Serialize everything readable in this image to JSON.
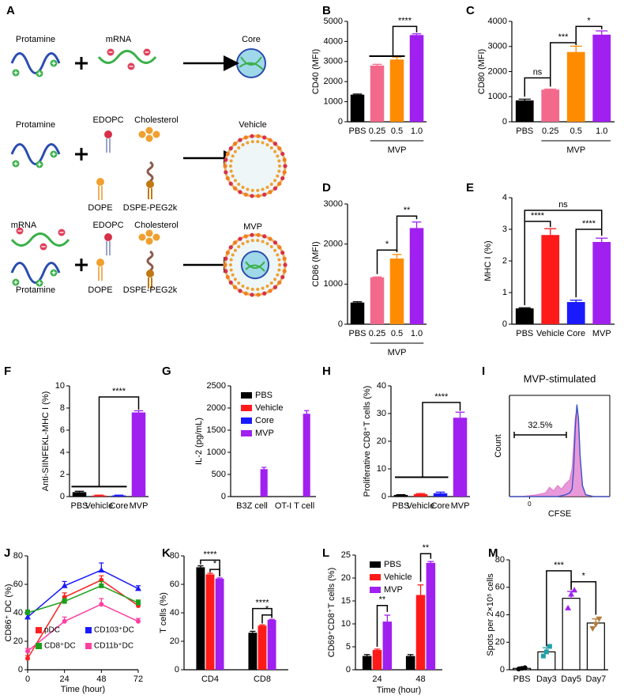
{
  "schematic": {
    "panel": "A",
    "rows": [
      {
        "labels": [
          "Protamine",
          "mRNA"
        ],
        "product": "Core"
      },
      {
        "labels": [
          "Protamine",
          "EDOPC",
          "Cholesterol",
          "DOPE",
          "DSPE-PEG2k"
        ],
        "product": "Vehicle"
      },
      {
        "labels": [
          "mRNA",
          "EDOPC",
          "Cholesterol",
          "Protamine",
          "DOPE",
          "DSPE-PEG2k"
        ],
        "product": "MVP"
      }
    ]
  },
  "chart_data": [
    {
      "panel": "B",
      "type": "bar",
      "ylabel": "CD40 (MFI)",
      "categories": [
        "PBS",
        "0.25",
        "0.5",
        "1.0"
      ],
      "xgroup": "MVP",
      "values": [
        1350,
        2800,
        3100,
        4320
      ],
      "errors": [
        30,
        60,
        120,
        60
      ],
      "colors": [
        "#000000",
        "#f2698c",
        "#ff8c00",
        "#a020f0"
      ],
      "ylim": [
        0,
        5000
      ],
      "yticks": [
        0,
        1000,
        2000,
        3000,
        4000,
        5000
      ],
      "brackets": [
        {
          "label": "****"
        }
      ]
    },
    {
      "panel": "C",
      "type": "bar",
      "ylabel": "CD80 (MFI)",
      "categories": [
        "PBS",
        "0.25",
        "0.5",
        "1.0"
      ],
      "xgroup": "MVP",
      "values": [
        850,
        1280,
        2780,
        3470
      ],
      "errors": [
        50,
        20,
        230,
        150
      ],
      "colors": [
        "#000000",
        "#f2698c",
        "#ff8c00",
        "#a020f0"
      ],
      "ylim": [
        0,
        4000
      ],
      "yticks": [
        0,
        1000,
        2000,
        3000,
        4000
      ],
      "brackets": [
        {
          "label": "ns"
        },
        {
          "label": "***"
        },
        {
          "label": "*"
        }
      ]
    },
    {
      "panel": "D",
      "type": "bar",
      "ylabel": "CD86 (MFI)",
      "categories": [
        "PBS",
        "0.25",
        "0.5",
        "1.0"
      ],
      "xgroup": "MVP",
      "values": [
        540,
        1170,
        1640,
        2400
      ],
      "errors": [
        20,
        10,
        100,
        150
      ],
      "colors": [
        "#000000",
        "#f2698c",
        "#ff8c00",
        "#a020f0"
      ],
      "ylim": [
        0,
        3000
      ],
      "yticks": [
        0,
        1000,
        2000,
        3000
      ],
      "brackets": [
        {
          "label": "*"
        },
        {
          "label": "**"
        }
      ]
    },
    {
      "panel": "E",
      "type": "bar",
      "ylabel": "MHC I (%)",
      "categories": [
        "PBS",
        "Vehicle",
        "Core",
        "MVP"
      ],
      "values": [
        0.5,
        2.82,
        0.7,
        2.6
      ],
      "errors": [
        0.02,
        0.2,
        0.06,
        0.12
      ],
      "colors": [
        "#000000",
        "#ff1a1a",
        "#1a1aff",
        "#a020f0"
      ],
      "ylim": [
        0,
        4
      ],
      "yticks": [
        0,
        1,
        2,
        3,
        4
      ],
      "brackets": [
        {
          "label": "****"
        },
        {
          "label": "ns"
        },
        {
          "label": "****"
        }
      ]
    },
    {
      "panel": "F",
      "type": "bar",
      "ylabel": "Anti-SIINFEKL-MHC I (%)",
      "categories": [
        "PBS",
        "Vehicle",
        "Core",
        "MVP"
      ],
      "values": [
        0.4,
        0.1,
        0.1,
        7.6
      ],
      "errors": [
        0.08,
        0.03,
        0.03,
        0.15
      ],
      "colors": [
        "#000000",
        "#ff1a1a",
        "#1a1aff",
        "#a020f0"
      ],
      "ylim": [
        0,
        10
      ],
      "yticks": [
        0,
        2,
        4,
        6,
        8,
        10
      ],
      "brackets": [
        {
          "label": "****"
        }
      ]
    },
    {
      "panel": "G",
      "type": "grouped_bar",
      "ylabel": "IL-2 (pg/mL)",
      "categories": [
        "B3Z cell",
        "OT-I T cell"
      ],
      "series": [
        {
          "name": "PBS",
          "color": "#000000",
          "values": [
            0,
            0
          ],
          "errors": [
            0,
            0
          ]
        },
        {
          "name": "Vehicle",
          "color": "#ff1a1a",
          "values": [
            0,
            0
          ],
          "errors": [
            0,
            0
          ]
        },
        {
          "name": "Core",
          "color": "#1a1aff",
          "values": [
            0,
            0
          ],
          "errors": [
            0,
            0
          ]
        },
        {
          "name": "MVP",
          "color": "#a020f0",
          "values": [
            620,
            1870
          ],
          "errors": [
            40,
            70
          ]
        }
      ],
      "ylim": [
        0,
        2500
      ],
      "yticks": [
        0,
        500,
        1000,
        1500,
        2000,
        2500
      ],
      "legend": "top-left"
    },
    {
      "panel": "H",
      "type": "bar",
      "ylabel": "Proliferative CD8⁺T cells (%)",
      "categories": [
        "PBS",
        "Vehicle",
        "Core",
        "MVP"
      ],
      "values": [
        0.6,
        0.9,
        1.2,
        28.5
      ],
      "errors": [
        0.1,
        0.2,
        0.4,
        2
      ],
      "colors": [
        "#000000",
        "#ff1a1a",
        "#1a1aff",
        "#a020f0"
      ],
      "ylim": [
        0,
        40
      ],
      "yticks": [
        0,
        10,
        20,
        30,
        40
      ],
      "brackets": [
        {
          "label": "****"
        }
      ]
    },
    {
      "panel": "I",
      "type": "density",
      "title": "MVP-stimulated",
      "xlabel": "CFSE",
      "ylabel": "Count",
      "annotation": "32.5%",
      "x": [
        -25,
        -10,
        0,
        10,
        20,
        25,
        30,
        35,
        40,
        45,
        50,
        53,
        55,
        57,
        59,
        61,
        63,
        66,
        70,
        80,
        100
      ],
      "series": [
        {
          "color": "#e27fcf",
          "values": [
            0,
            0,
            1,
            2,
            4,
            10,
            6,
            12,
            8,
            14,
            18,
            30,
            55,
            85,
            95,
            80,
            40,
            10,
            2,
            0,
            0
          ]
        },
        {
          "color": "#3050c8",
          "values": [
            0,
            0,
            0,
            0,
            0,
            0,
            0,
            0,
            1,
            2,
            4,
            8,
            30,
            75,
            100,
            85,
            45,
            12,
            2,
            0,
            0
          ]
        }
      ],
      "xlim": [
        -25,
        100
      ],
      "ylim": [
        0,
        110
      ],
      "xticks": [
        0
      ]
    },
    {
      "panel": "J",
      "type": "line",
      "xlabel": "Time (hour)",
      "ylabel": "CD86⁺ DC (%)",
      "x": [
        0,
        24,
        48,
        72
      ],
      "series": [
        {
          "name": "pDC",
          "color": "#ff2020",
          "values": [
            8,
            51,
            63,
            45
          ],
          "errors": [
            2,
            3,
            3,
            2
          ]
        },
        {
          "name": "CD103⁺DC",
          "color": "#1a1aff",
          "values": [
            37,
            59,
            70,
            57
          ],
          "errors": [
            2,
            3,
            5,
            2
          ]
        },
        {
          "name": "CD8⁺DC",
          "color": "#1aa01a",
          "values": [
            40,
            48,
            59,
            47
          ],
          "errors": [
            2,
            2,
            3,
            2
          ]
        },
        {
          "name": "CD11b⁺DC",
          "color": "#ff3fa0",
          "values": [
            13,
            34,
            46,
            34
          ],
          "errors": [
            2,
            3,
            4,
            2
          ]
        }
      ],
      "xlim": [
        0,
        72
      ],
      "xticks": [
        0,
        24,
        48,
        72
      ],
      "ylim": [
        0,
        80
      ],
      "yticks": [
        0,
        20,
        40,
        60,
        80
      ],
      "legend": "bottom"
    },
    {
      "panel": "K",
      "type": "grouped_bar",
      "ylabel": "T cells (%)",
      "categories": [
        "CD4",
        "CD8"
      ],
      "series": [
        {
          "color": "#000000",
          "values": [
            72,
            26
          ],
          "errors": [
            1,
            1
          ]
        },
        {
          "color": "#ff1a1a",
          "values": [
            67,
            31
          ],
          "errors": [
            0.8,
            0.5
          ]
        },
        {
          "color": "#a020f0",
          "values": [
            64,
            35
          ],
          "errors": [
            0.5,
            0.4
          ]
        }
      ],
      "ylim": [
        0,
        80
      ],
      "yticks": [
        0,
        20,
        40,
        60,
        80
      ],
      "brackets": [
        {
          "label": "****"
        },
        {
          "label": "*"
        },
        {
          "label": "****"
        },
        {
          "label": "*"
        }
      ]
    },
    {
      "panel": "L",
      "type": "grouped_bar",
      "xlabel": "Time (hour)",
      "ylabel": "CD69⁺CD8⁺T cells (%)",
      "categories": [
        "24",
        "48"
      ],
      "series": [
        {
          "name": "PBS",
          "color": "#000000",
          "values": [
            3,
            3
          ],
          "errors": [
            0.3,
            0.3
          ]
        },
        {
          "name": "Vehicle",
          "color": "#ff1a1a",
          "values": [
            4.3,
            16.3
          ],
          "errors": [
            0.2,
            2.2
          ]
        },
        {
          "name": "MVP",
          "color": "#a020f0",
          "values": [
            10.5,
            23.3
          ],
          "errors": [
            1.4,
            0.3
          ]
        }
      ],
      "ylim": [
        0,
        25
      ],
      "yticks": [
        0,
        5,
        10,
        15,
        20,
        25
      ],
      "legend": "top-left",
      "brackets": [
        {
          "label": "**"
        },
        {
          "label": "**"
        }
      ]
    },
    {
      "panel": "M",
      "type": "bar",
      "ylabel": "Spots per 2×10⁵ cells",
      "categories": [
        "PBS",
        "Day3",
        "Day5",
        "Day7"
      ],
      "values": [
        1,
        13,
        52,
        34
      ],
      "errors": [
        1,
        3,
        5,
        3
      ],
      "colors": [
        "#000000",
        "#20a0a8",
        "#a020f0",
        "#b07a3a"
      ],
      "points": [
        [
          0.5,
          1,
          1.5
        ],
        [
          10,
          13,
          17
        ],
        [
          45,
          55,
          58
        ],
        [
          30,
          33,
          37
        ]
      ],
      "ylim": [
        0,
        80
      ],
      "yticks": [
        0,
        20,
        40,
        60,
        80
      ],
      "brackets": [
        {
          "label": "***"
        },
        {
          "label": "*"
        }
      ]
    }
  ]
}
